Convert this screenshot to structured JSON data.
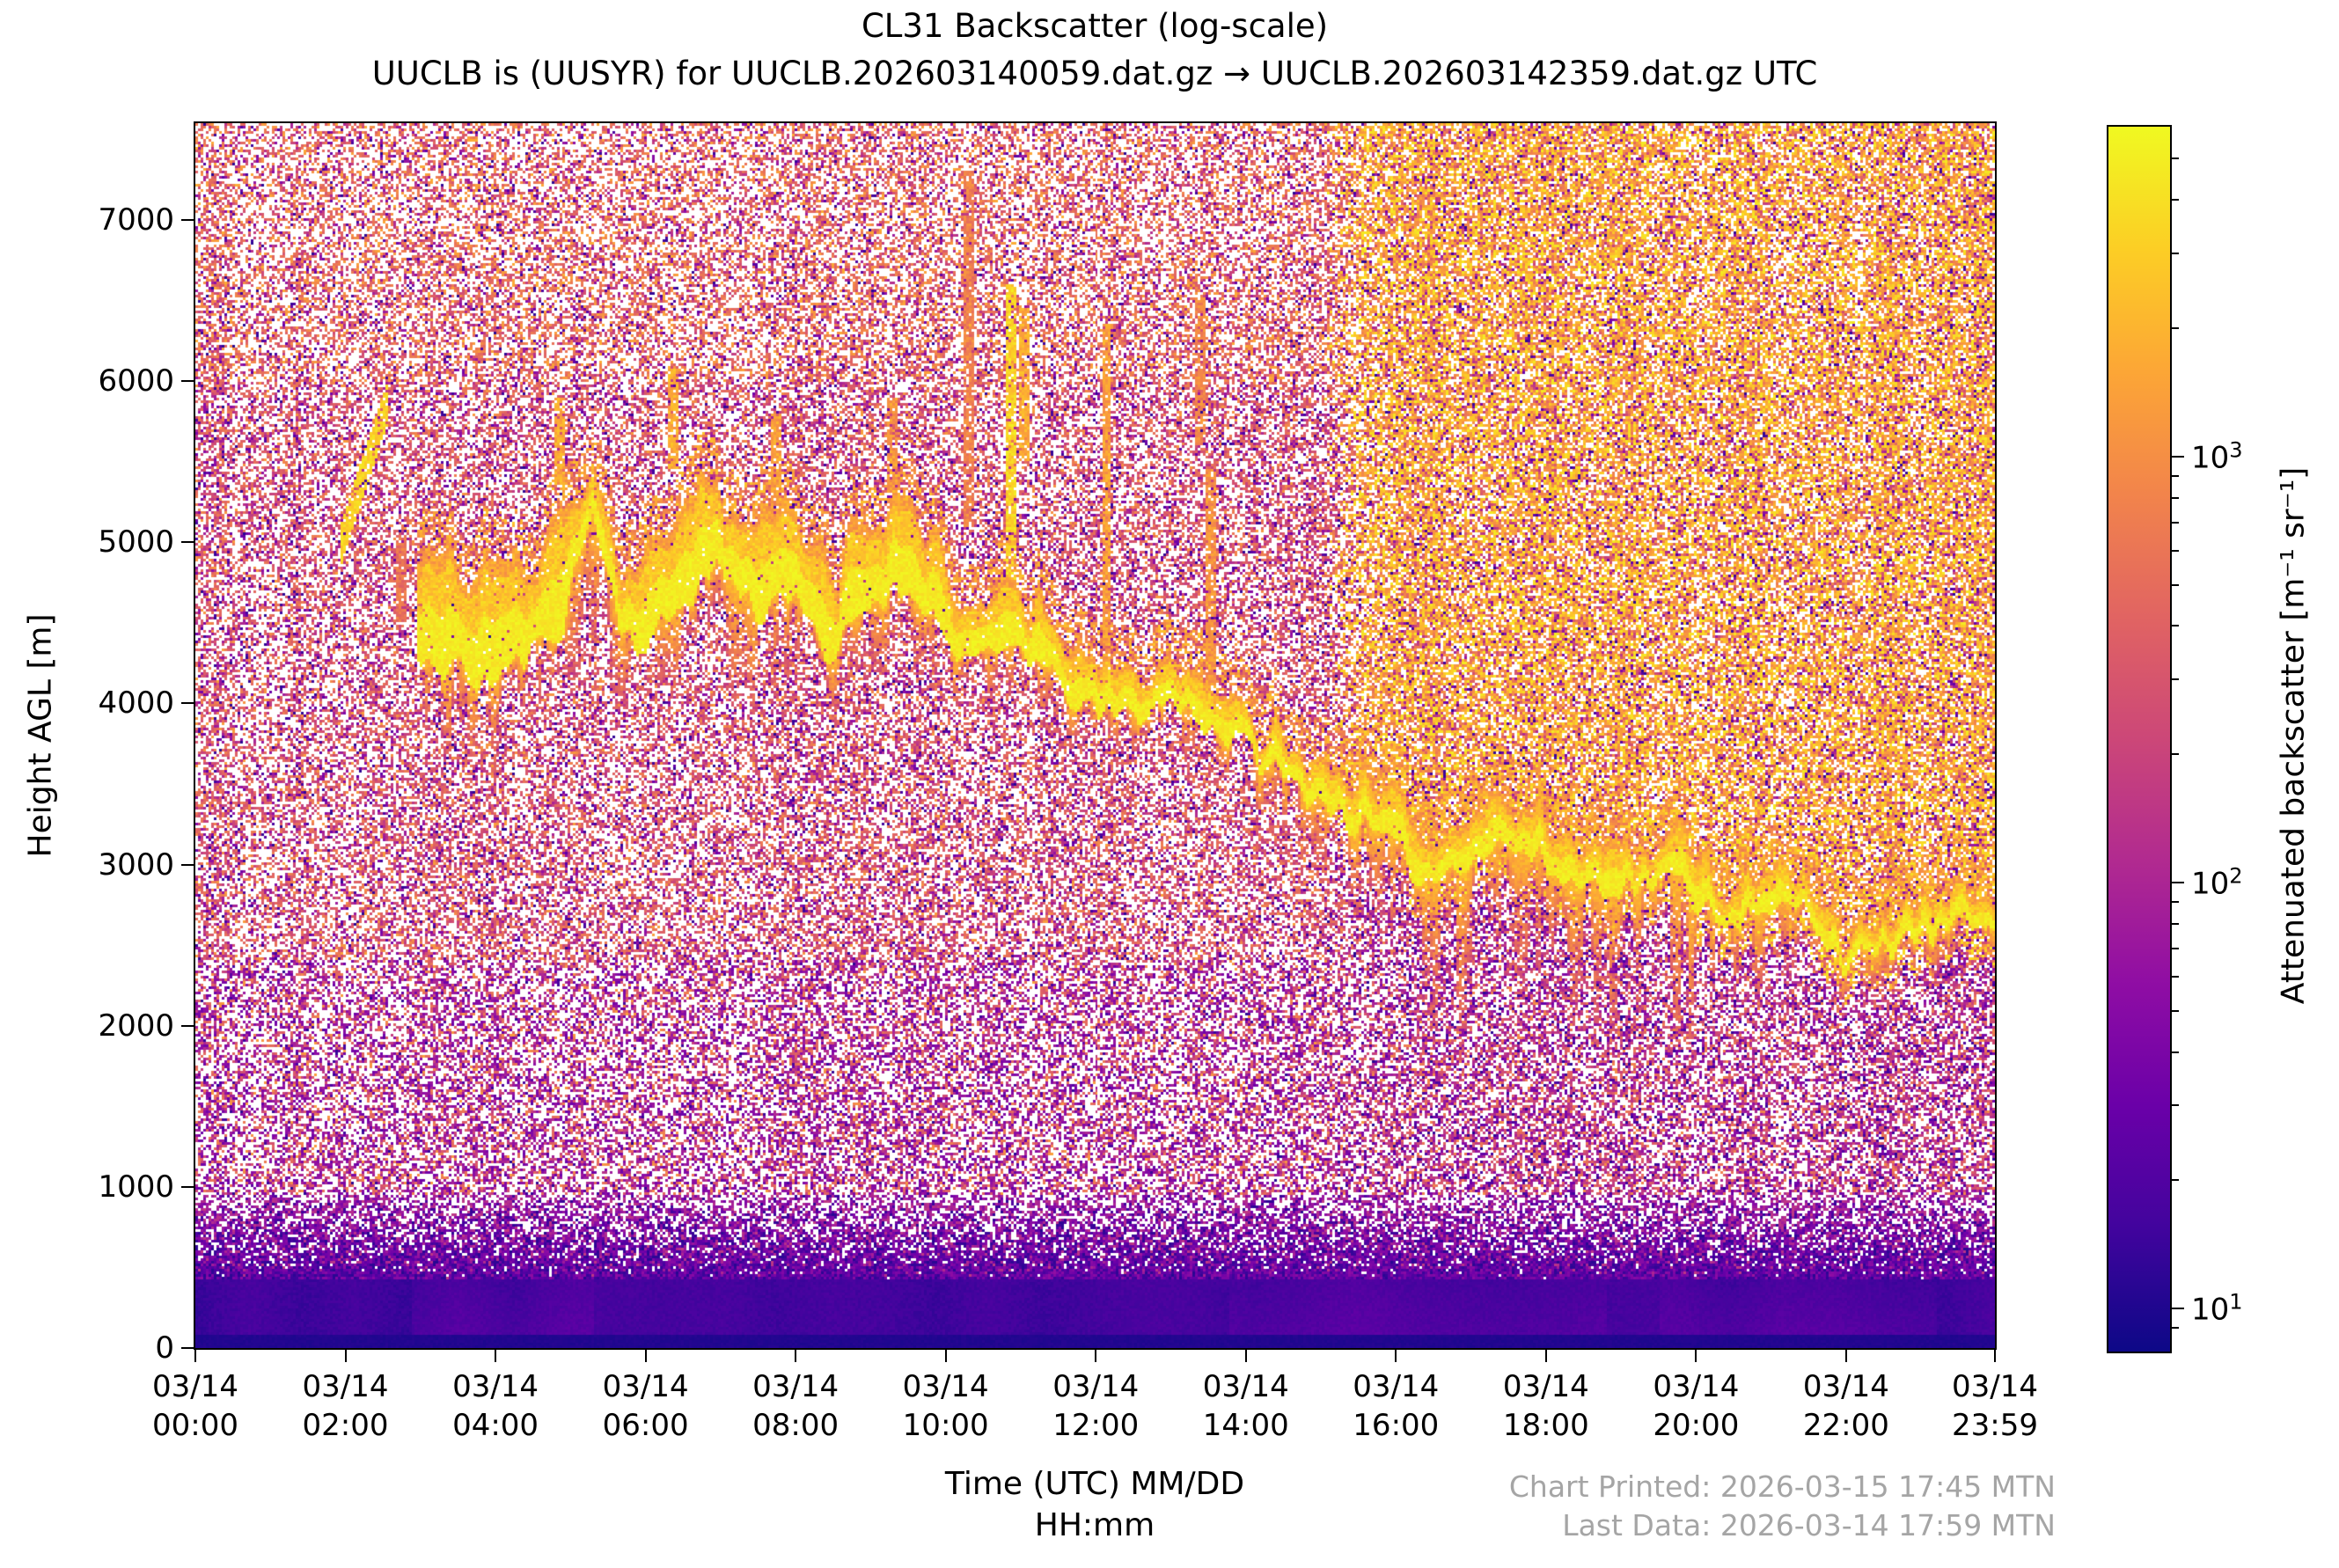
{
  "figure": {
    "title": "CL31 Backscatter (log-scale)",
    "subtitle": "UUCLB is (UUSYR) for UUCLB.202603140059.dat.gz → UUCLB.202603142359.dat.gz UTC"
  },
  "footer": {
    "printed": "Chart Printed: 2026-03-15 17:45 MTN",
    "last_data": "Last Data: 2026-03-14 17:59 MTN"
  },
  "chart_data": {
    "type": "heatmap",
    "title": "CL31 Backscatter (log-scale)",
    "subtitle": "UUCLB is (UUSYR) for UUCLB.202603140059.dat.gz → UUCLB.202603142359.dat.gz UTC",
    "xlabel_lines": [
      "Time (UTC) MM/DD",
      "HH:mm"
    ],
    "ylabel": "Height AGL [m]",
    "x_range_hours": [
      0,
      23.983
    ],
    "y_range_m": [
      0,
      7600
    ],
    "grid": false,
    "x_ticks": [
      {
        "hour": 0,
        "label_date": "03/14",
        "label_time": "00:00"
      },
      {
        "hour": 2,
        "label_date": "03/14",
        "label_time": "02:00"
      },
      {
        "hour": 4,
        "label_date": "03/14",
        "label_time": "04:00"
      },
      {
        "hour": 6,
        "label_date": "03/14",
        "label_time": "06:00"
      },
      {
        "hour": 8,
        "label_date": "03/14",
        "label_time": "08:00"
      },
      {
        "hour": 10,
        "label_date": "03/14",
        "label_time": "10:00"
      },
      {
        "hour": 12,
        "label_date": "03/14",
        "label_time": "12:00"
      },
      {
        "hour": 14,
        "label_date": "03/14",
        "label_time": "14:00"
      },
      {
        "hour": 16,
        "label_date": "03/14",
        "label_time": "16:00"
      },
      {
        "hour": 18,
        "label_date": "03/14",
        "label_time": "18:00"
      },
      {
        "hour": 20,
        "label_date": "03/14",
        "label_time": "20:00"
      },
      {
        "hour": 22,
        "label_date": "03/14",
        "label_time": "22:00"
      },
      {
        "hour": 23.983,
        "label_date": "03/14",
        "label_time": "23:59"
      }
    ],
    "y_ticks_m": [
      0,
      1000,
      2000,
      3000,
      4000,
      5000,
      6000,
      7000
    ],
    "colorbar": {
      "label": "Attenuated backscatter [m⁻¹ sr⁻¹]",
      "scale": "log",
      "vmin": 8,
      "vmax": 6000,
      "major_ticks": [
        {
          "value": 1000,
          "base": "10",
          "exp": "3"
        },
        {
          "value": 100,
          "base": "10",
          "exp": "2"
        },
        {
          "value": 10,
          "base": "10",
          "exp": "1"
        }
      ],
      "colormap": "plasma",
      "colormap_rgb_stops": [
        [
          13,
          8,
          135
        ],
        [
          65,
          4,
          157
        ],
        [
          106,
          0,
          168
        ],
        [
          143,
          13,
          164
        ],
        [
          177,
          42,
          144
        ],
        [
          204,
          71,
          120
        ],
        [
          225,
          100,
          98
        ],
        [
          242,
          132,
          75
        ],
        [
          252,
          166,
          54
        ],
        [
          252,
          206,
          37
        ],
        [
          240,
          249,
          33
        ]
      ]
    },
    "features": {
      "description": "Noisy ceilometer curtain: pink/magenta night-time speckle before ~15:15 UTC, bright orange/yellow solar-contaminated speckle after; solid dark-indigo surface echo below ~450 m AGL; mid-level cloud layer with virga descending from ~4500 m (morning) to ~2500-2800 m (evening).",
      "day_transition_hour": 15.05,
      "surface_layer_top_m": 430,
      "blue_band_top_m": 950,
      "cloud_track": [
        [
          2.95,
          4300,
          520,
          420
        ],
        [
          3.4,
          4250,
          620,
          560
        ],
        [
          3.9,
          4150,
          560,
          520
        ],
        [
          4.4,
          4350,
          500,
          420
        ],
        [
          4.9,
          4500,
          560,
          340
        ],
        [
          5.3,
          5250,
          340,
          800
        ],
        [
          5.65,
          4550,
          480,
          420
        ],
        [
          6.0,
          4300,
          580,
          420
        ],
        [
          6.5,
          4600,
          580,
          520
        ],
        [
          7.0,
          4780,
          500,
          620
        ],
        [
          7.5,
          4560,
          540,
          720
        ],
        [
          8.0,
          4700,
          480,
          420
        ],
        [
          8.4,
          4260,
          500,
          340
        ],
        [
          8.8,
          4500,
          540,
          420
        ],
        [
          9.2,
          4620,
          460,
          420
        ],
        [
          9.6,
          4660,
          400,
          320
        ],
        [
          10.0,
          4360,
          440,
          360
        ],
        [
          10.5,
          4260,
          400,
          300
        ],
        [
          11.0,
          4360,
          340,
          260
        ],
        [
          11.5,
          4160,
          300,
          260
        ],
        [
          12.0,
          3960,
          250,
          300
        ],
        [
          12.5,
          4000,
          250,
          260
        ],
        [
          13.0,
          4060,
          250,
          300
        ],
        [
          13.5,
          3860,
          230,
          320
        ],
        [
          14.0,
          3760,
          220,
          360
        ],
        [
          14.5,
          3560,
          220,
          400
        ],
        [
          15.0,
          3460,
          220,
          420
        ],
        [
          15.5,
          3260,
          230,
          520
        ],
        [
          16.0,
          3060,
          260,
          700
        ],
        [
          16.5,
          2900,
          300,
          1050
        ],
        [
          17.0,
          3000,
          300,
          880
        ],
        [
          17.5,
          3100,
          280,
          700
        ],
        [
          18.0,
          2980,
          260,
          800
        ],
        [
          18.5,
          2880,
          260,
          900
        ],
        [
          19.0,
          2820,
          250,
          700
        ],
        [
          19.5,
          2880,
          240,
          620
        ],
        [
          20.0,
          2780,
          240,
          1350
        ],
        [
          20.4,
          2750,
          220,
          600
        ],
        [
          21.0,
          2700,
          200,
          420
        ],
        [
          21.5,
          2700,
          190,
          320
        ],
        [
          22.0,
          2430,
          170,
          260
        ],
        [
          22.5,
          2480,
          170,
          220
        ],
        [
          23.0,
          2520,
          180,
          260
        ],
        [
          23.5,
          2620,
          190,
          260
        ],
        [
          23.98,
          2700,
          200,
          300
        ]
      ],
      "plumes_vertical": [
        [
          2.75,
          4500,
          5050,
          0.62
        ],
        [
          4.85,
          5350,
          5900,
          0.78
        ],
        [
          6.35,
          5450,
          6100,
          0.78
        ],
        [
          7.75,
          5150,
          5800,
          0.75
        ],
        [
          9.3,
          5300,
          5900,
          0.72
        ],
        [
          10.3,
          5100,
          7300,
          0.66
        ],
        [
          10.85,
          4450,
          6600,
          0.88
        ],
        [
          11.05,
          5500,
          6450,
          0.78
        ],
        [
          12.15,
          4250,
          6350,
          0.75
        ],
        [
          13.4,
          5600,
          6500,
          0.68
        ],
        [
          13.55,
          4100,
          5450,
          0.72
        ]
      ],
      "plumes_diagonal": [
        [
          1.95,
          5000,
          2.55,
          5850,
          0.86
        ]
      ],
      "ground_plumes": [
        [
          2.9,
          5.3,
          620
        ],
        [
          13.8,
          18.8,
          660
        ],
        [
          19.5,
          23.2,
          520
        ]
      ]
    }
  }
}
